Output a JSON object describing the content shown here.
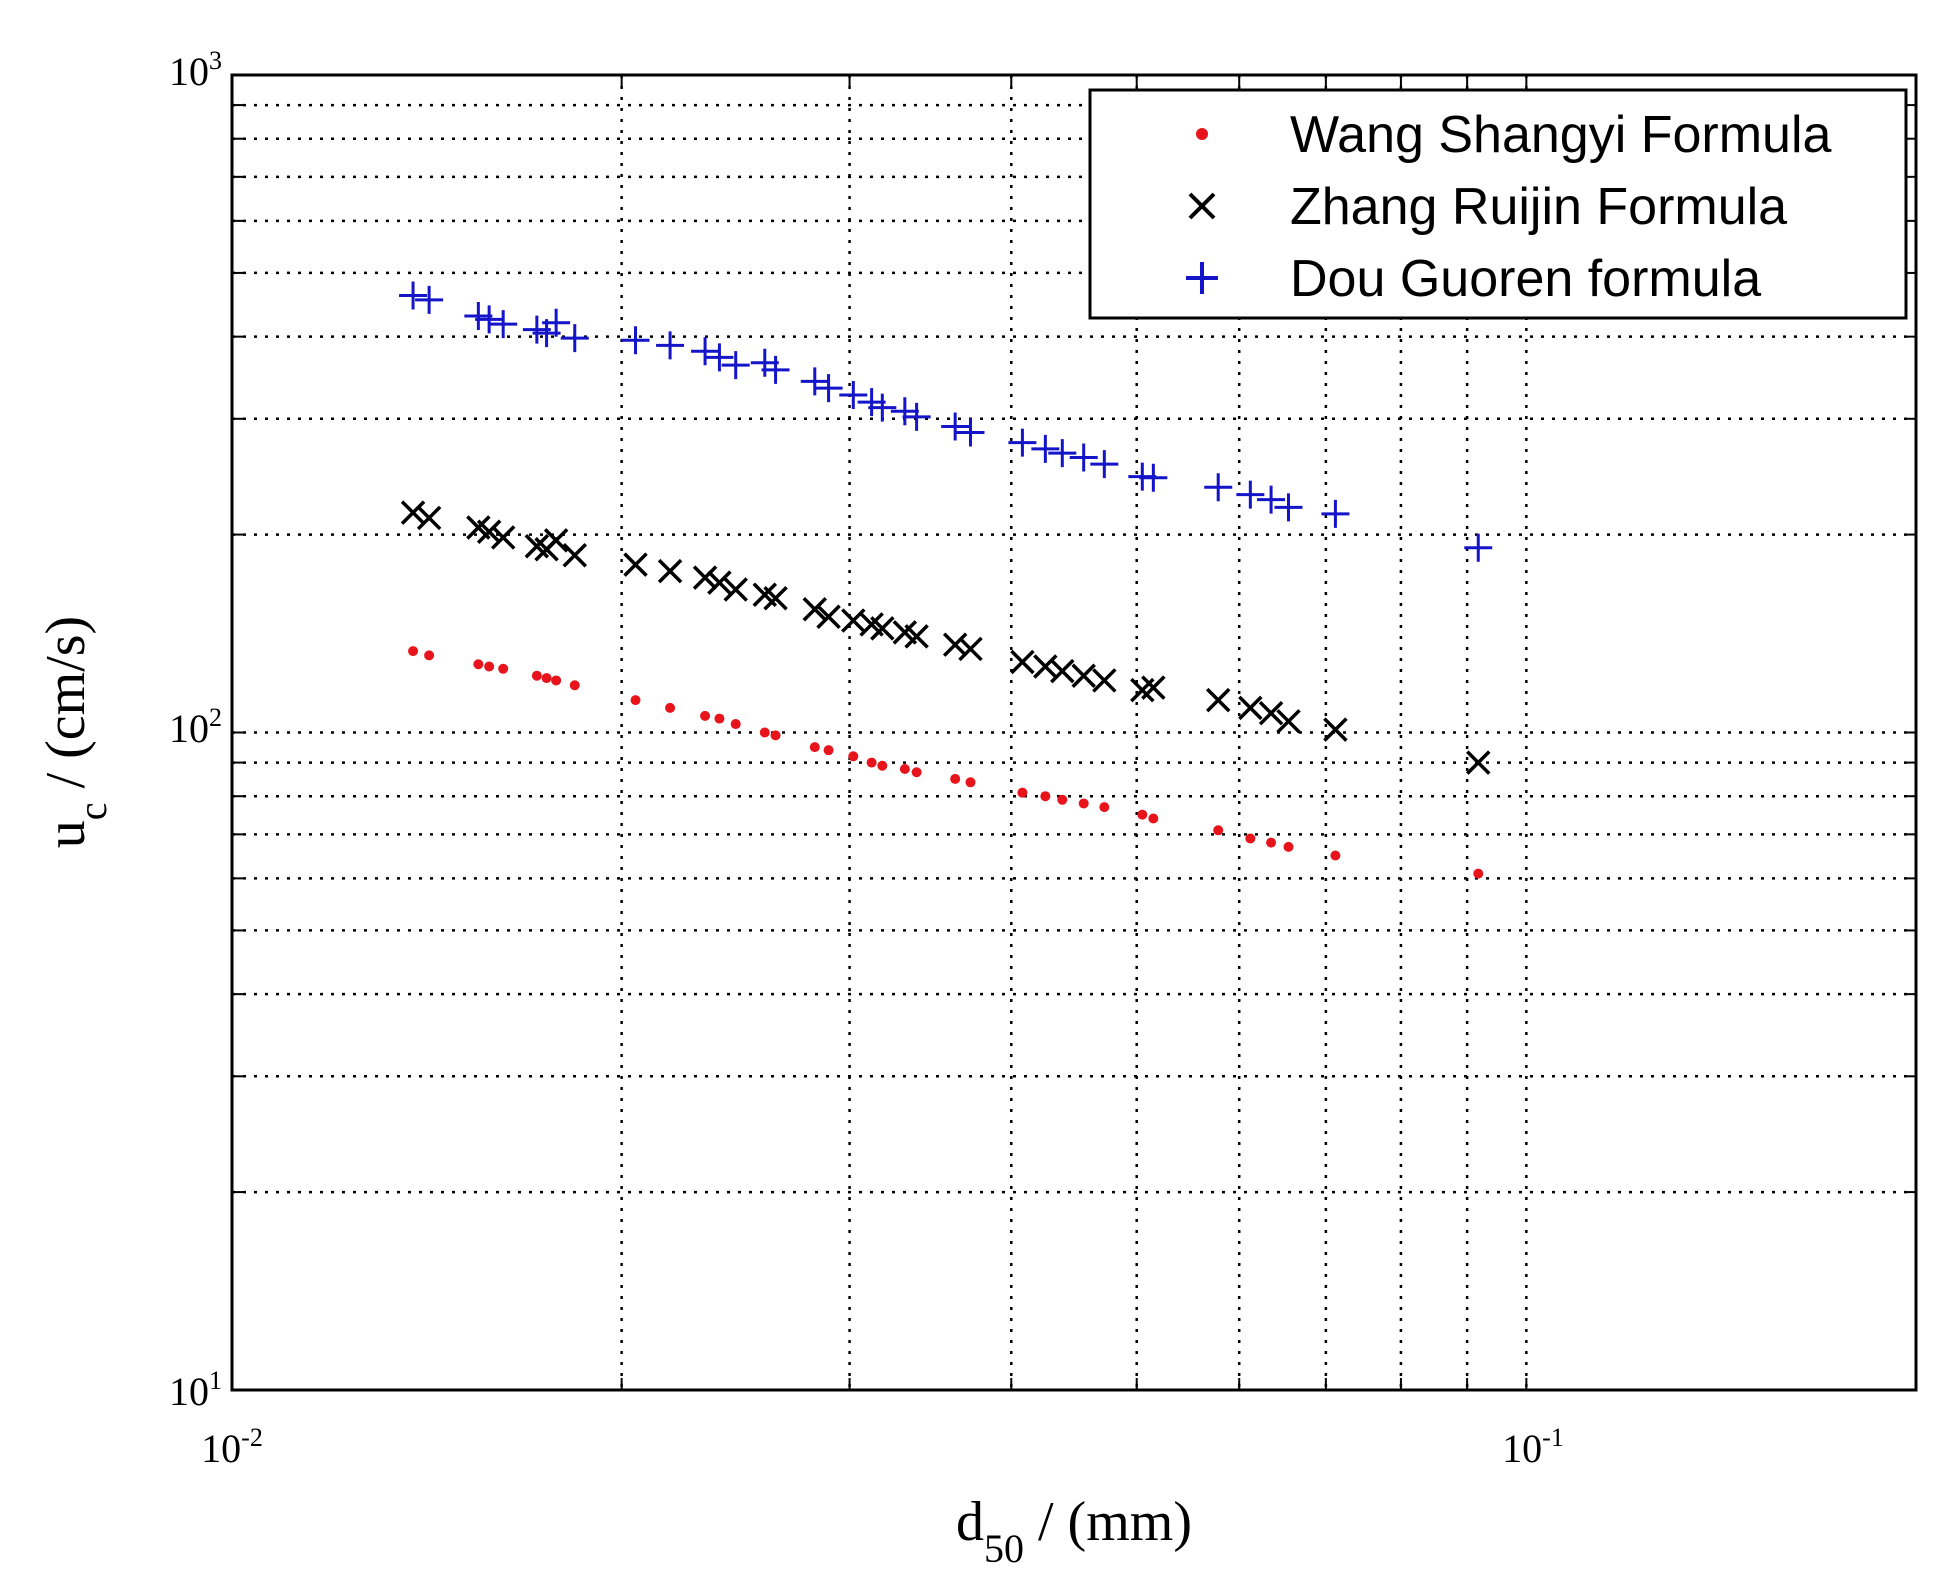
{
  "chart_data": {
    "type": "scatter",
    "x_scale": "log",
    "y_scale": "log",
    "xlim": [
      0.01,
      0.2
    ],
    "ylim": [
      10,
      1000
    ],
    "grid": true,
    "grid_style": "dotted",
    "legend_position": "top-right",
    "x_ticks": [
      {
        "base": "10",
        "exp": "-2",
        "value": 0.01
      },
      {
        "base": "10",
        "exp": "-1",
        "value": 0.1
      }
    ],
    "y_ticks": [
      {
        "base": "10",
        "exp": "1",
        "value": 10
      },
      {
        "base": "10",
        "exp": "2",
        "value": 100
      },
      {
        "base": "10",
        "exp": "3",
        "value": 1000
      }
    ],
    "xlabel": {
      "main": "d",
      "sub": "50",
      "rest": " / (mm)"
    },
    "ylabel": {
      "main": "u",
      "sub": "c",
      "rest": " / (cm/s)"
    },
    "x": [
      0.0138,
      0.0142,
      0.0155,
      0.0158,
      0.0162,
      0.0172,
      0.0175,
      0.0178,
      0.0184,
      0.0205,
      0.0218,
      0.0232,
      0.0238,
      0.0245,
      0.0258,
      0.0263,
      0.0282,
      0.0289,
      0.0302,
      0.0312,
      0.0318,
      0.0331,
      0.0338,
      0.0362,
      0.0372,
      0.0408,
      0.0425,
      0.0438,
      0.0455,
      0.0472,
      0.0505,
      0.0515,
      0.0578,
      0.0612,
      0.0635,
      0.0655,
      0.0712,
      0.0918
    ],
    "series": [
      {
        "name": "Wang Shangyi Formula",
        "marker": "dot",
        "color": "#e8141c",
        "values": [
          133,
          131,
          127,
          126,
          125,
          122,
          121,
          120,
          118,
          112,
          109,
          106,
          105,
          103,
          100,
          99,
          95,
          94,
          92,
          90,
          89,
          88,
          87,
          85,
          84,
          81,
          80,
          79,
          78,
          77,
          75,
          74,
          71,
          69,
          68,
          67,
          65,
          61
        ]
      },
      {
        "name": "Zhang Ruijin Formula",
        "marker": "x",
        "color": "#000000",
        "values": [
          216,
          212,
          205,
          202,
          198,
          192,
          190,
          196,
          186,
          180,
          176,
          172,
          169,
          165,
          162,
          160,
          154,
          150,
          148,
          146,
          144,
          142,
          140,
          136,
          134,
          128,
          126,
          124,
          122,
          120,
          116,
          117,
          112,
          109,
          107,
          104,
          101,
          90
        ]
      },
      {
        "name": "Dou Guoren formula",
        "marker": "plus",
        "color": "#1414c8",
        "values": [
          462,
          455,
          430,
          425,
          418,
          410,
          405,
          420,
          398,
          395,
          388,
          380,
          372,
          362,
          365,
          356,
          342,
          334,
          326,
          318,
          312,
          308,
          302,
          292,
          286,
          276,
          270,
          266,
          262,
          256,
          245,
          244,
          236,
          230,
          226,
          220,
          215,
          191
        ]
      }
    ]
  }
}
